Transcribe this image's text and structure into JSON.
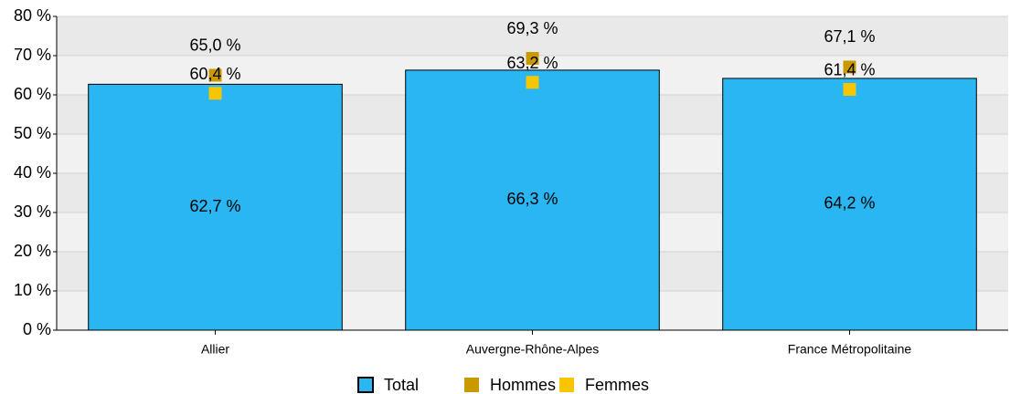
{
  "chart_data": {
    "type": "bar",
    "categories": [
      "Allier",
      "Auvergne-Rhône-Alpes",
      "France Métropolitaine"
    ],
    "series": [
      {
        "name": "Total",
        "kind": "bar",
        "color": "#29b6f2",
        "values": [
          62.7,
          66.3,
          64.2
        ],
        "value_labels": [
          "62,7 %",
          "66,3 %",
          "64,2 %"
        ]
      },
      {
        "name": "Hommes",
        "kind": "point",
        "color": "#c99a00",
        "values": [
          65.0,
          69.3,
          67.1
        ],
        "value_labels": [
          "65,0 %",
          "69,3 %",
          "67,1 %"
        ]
      },
      {
        "name": "Femmes",
        "kind": "point",
        "color": "#f7c600",
        "values": [
          60.4,
          63.2,
          61.4
        ],
        "value_labels": [
          "60,4 %",
          "63,2 %",
          "61,4 %"
        ]
      }
    ],
    "ylim": [
      0,
      80
    ],
    "yticks": [
      {
        "value": 0,
        "label": "0 %"
      },
      {
        "value": 10,
        "label": "10 %"
      },
      {
        "value": 20,
        "label": "20 %"
      },
      {
        "value": 30,
        "label": "30 %"
      },
      {
        "value": 40,
        "label": "40 %"
      },
      {
        "value": 50,
        "label": "50 %"
      },
      {
        "value": 60,
        "label": "60 %"
      },
      {
        "value": 70,
        "label": "70 %"
      },
      {
        "value": 80,
        "label": "80 %"
      }
    ],
    "grid": true
  }
}
